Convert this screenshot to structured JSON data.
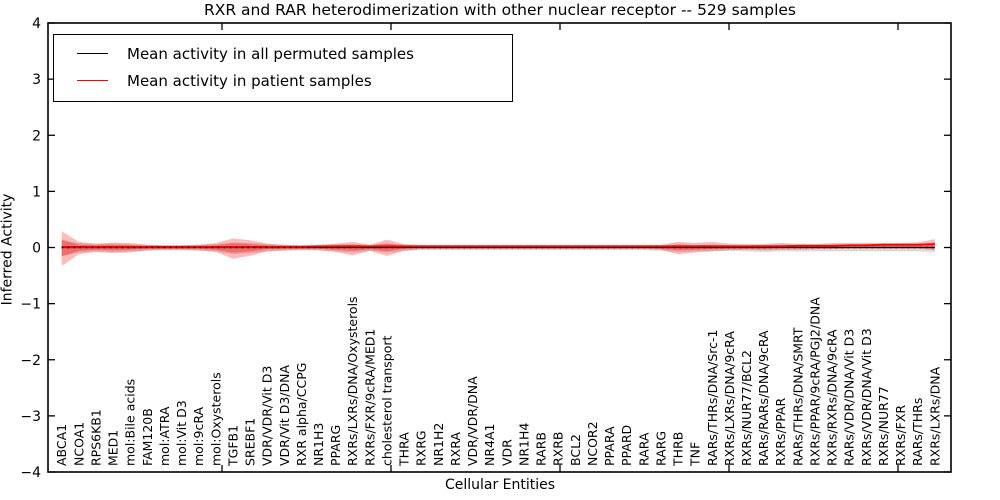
{
  "title": "RXR and RAR heterodimerization with other nuclear receptor -- 529 samples",
  "legend": {
    "items": [
      {
        "label": "Mean activity in all permuted samples",
        "color": "#000000"
      },
      {
        "label": "Mean activity in patient samples",
        "color": "#ff0000"
      }
    ]
  },
  "axes": {
    "ylabel": "Inferred Activity",
    "xlabel": "Cellular Entities",
    "ylim": [
      -4,
      4
    ],
    "yticks": [
      4,
      3,
      2,
      1,
      0,
      -1,
      -2,
      -3,
      -4
    ],
    "ytick_labels": [
      "4",
      "3",
      "2",
      "1",
      "0",
      "−1",
      "−2",
      "−3",
      "−4"
    ]
  },
  "chart_data": {
    "type": "line",
    "title": "RXR and RAR heterodimerization with other nuclear receptor -- 529 samples",
    "xlabel": "Cellular Entities",
    "ylabel": "Inferred Activity",
    "ylim": [
      -4,
      4
    ],
    "grid": false,
    "legend_position": "upper left",
    "categories": [
      "ABCA1",
      "NCOA1",
      "RPS6KB1",
      "MED1",
      "mol:Bile acids",
      "FAM120B",
      "mol:ATRA",
      "mol:Vit D3",
      "mol:9cRA",
      "mol:Oxysterols",
      "TGFB1",
      "SREBF1",
      "VDR/VDR/Vit D3",
      "VDR/Vit D3/DNA",
      "RXR alpha/CCPG",
      "NR1H3",
      "PPARG",
      "RXRs/LXRs/DNA/Oxysterols",
      "RXRs/FXR/9cRA/MED1",
      "cholesterol transport",
      "THRA",
      "RXRG",
      "NR1H2",
      "RXRA",
      "VDR/VDR/DNA",
      "NR4A1",
      "VDR",
      "NR1H4",
      "RARB",
      "RXRB",
      "BCL2",
      "NCOR2",
      "PPARA",
      "PPARD",
      "RARA",
      "RARG",
      "THRB",
      "TNF",
      "RARs/THRs/DNA/Src-1",
      "RXRs/LXRs/DNA/9cRA",
      "RXRs/NUR77/BCL2",
      "RARs/RARs/DNA/9cRA",
      "RXRs/PPAR",
      "RARs/THRs/DNA/SMRT",
      "RXRs/PPAR/9cRA/PGJ2/DNA",
      "RXRs/RXRs/DNA/9cRA",
      "RARs/VDR/DNA/Vit D3",
      "RXRs/VDR/DNA/Vit D3",
      "RXRs/NUR77",
      "RXRs/FXR",
      "RARs/THRs",
      "RXRs/LXRs/DNA"
    ],
    "series": [
      {
        "name": "Mean activity in all permuted samples",
        "color": "#000000",
        "width": 1.3,
        "values": [
          0,
          0,
          0,
          0,
          0,
          0,
          0,
          0,
          0,
          0,
          0,
          0,
          0,
          0,
          0,
          0,
          0,
          0,
          0,
          0,
          0,
          0,
          0,
          0,
          0,
          0,
          0,
          0,
          0,
          0,
          0,
          0,
          0,
          0,
          0,
          0,
          0,
          0,
          0,
          0,
          0,
          0,
          0,
          0,
          0,
          0,
          0,
          0,
          0,
          0,
          0,
          0
        ]
      },
      {
        "name": "Mean activity in patient samples",
        "color": "#ff0000",
        "width": 1.8,
        "values": [
          0.01,
          0.01,
          0.01,
          0.01,
          0.01,
          0.01,
          0.01,
          0.01,
          0.01,
          0.01,
          0.01,
          0.01,
          0.01,
          0.01,
          0.01,
          0.02,
          0.02,
          0.02,
          0.02,
          0.02,
          0.02,
          0.02,
          0.02,
          0.02,
          0.02,
          0.02,
          0.02,
          0.02,
          0.02,
          0.02,
          0.02,
          0.02,
          0.02,
          0.02,
          0.02,
          0.02,
          0.02,
          0.02,
          0.02,
          0.02,
          0.02,
          0.02,
          0.02,
          0.03,
          0.03,
          0.03,
          0.04,
          0.04,
          0.05,
          0.05,
          0.05,
          0.06
        ]
      }
    ],
    "bands": [
      {
        "name": "permuted-std",
        "color": "#000000",
        "alpha": 0.14,
        "upper": [
          0.12,
          0.08,
          0.06,
          0.07,
          0.06,
          0.05,
          0.04,
          0.04,
          0.05,
          0.06,
          0.09,
          0.08,
          0.06,
          0.05,
          0.04,
          0.04,
          0.06,
          0.06,
          0.05,
          0.07,
          0.05,
          0.04,
          0.04,
          0.04,
          0.04,
          0.04,
          0.04,
          0.04,
          0.04,
          0.04,
          0.04,
          0.04,
          0.04,
          0.04,
          0.04,
          0.04,
          0.06,
          0.05,
          0.05,
          0.04,
          0.04,
          0.05,
          0.04,
          0.04,
          0.04,
          0.04,
          0.04,
          0.04,
          0.04,
          0.04,
          0.04,
          0.06
        ],
        "lower": [
          -0.15,
          -0.09,
          -0.07,
          -0.08,
          -0.07,
          -0.06,
          -0.05,
          -0.05,
          -0.06,
          -0.07,
          -0.12,
          -0.1,
          -0.07,
          -0.06,
          -0.05,
          -0.05,
          -0.07,
          -0.09,
          -0.06,
          -0.09,
          -0.06,
          -0.05,
          -0.05,
          -0.05,
          -0.05,
          -0.05,
          -0.05,
          -0.05,
          -0.05,
          -0.05,
          -0.05,
          -0.05,
          -0.05,
          -0.05,
          -0.05,
          -0.06,
          -0.08,
          -0.07,
          -0.06,
          -0.06,
          -0.07,
          -0.08,
          -0.07,
          -0.07,
          -0.07,
          -0.07,
          -0.07,
          -0.07,
          -0.07,
          -0.07,
          -0.07,
          -0.08
        ]
      },
      {
        "name": "patient-outer",
        "color": "#ff0000",
        "alpha": 0.27,
        "upper": [
          0.29,
          0.1,
          0.07,
          0.09,
          0.08,
          0.05,
          0.04,
          0.04,
          0.05,
          0.08,
          0.16,
          0.13,
          0.07,
          0.05,
          0.04,
          0.05,
          0.07,
          0.1,
          0.05,
          0.14,
          0.06,
          0.05,
          0.05,
          0.05,
          0.05,
          0.05,
          0.05,
          0.05,
          0.05,
          0.05,
          0.05,
          0.05,
          0.05,
          0.05,
          0.05,
          0.05,
          0.1,
          0.08,
          0.1,
          0.07,
          0.06,
          0.06,
          0.08,
          0.07,
          0.06,
          0.08,
          0.08,
          0.08,
          0.08,
          0.08,
          0.09,
          0.15
        ],
        "lower": [
          -0.33,
          -0.12,
          -0.08,
          -0.1,
          -0.09,
          -0.05,
          -0.04,
          -0.04,
          -0.05,
          -0.08,
          -0.2,
          -0.15,
          -0.07,
          -0.05,
          -0.04,
          -0.05,
          -0.08,
          -0.14,
          -0.06,
          -0.15,
          -0.06,
          -0.03,
          -0.03,
          -0.03,
          -0.03,
          -0.03,
          -0.03,
          -0.03,
          -0.03,
          -0.03,
          -0.03,
          -0.03,
          -0.03,
          -0.03,
          -0.03,
          -0.04,
          -0.12,
          -0.09,
          -0.07,
          -0.05,
          -0.04,
          -0.05,
          -0.04,
          -0.04,
          -0.03,
          -0.03,
          -0.02,
          -0.02,
          -0.02,
          -0.02,
          -0.02,
          -0.05
        ]
      },
      {
        "name": "patient-inner",
        "color": "#ff0000",
        "alpha": 0.3,
        "upper": [
          0.14,
          0.05,
          0.04,
          0.05,
          0.04,
          0.03,
          0.03,
          0.03,
          0.03,
          0.04,
          0.08,
          0.06,
          0.04,
          0.03,
          0.03,
          0.03,
          0.04,
          0.05,
          0.03,
          0.07,
          0.04,
          0.03,
          0.03,
          0.03,
          0.03,
          0.03,
          0.03,
          0.03,
          0.03,
          0.03,
          0.03,
          0.03,
          0.03,
          0.03,
          0.03,
          0.03,
          0.05,
          0.04,
          0.05,
          0.04,
          0.04,
          0.04,
          0.05,
          0.04,
          0.04,
          0.05,
          0.05,
          0.05,
          0.05,
          0.05,
          0.06,
          0.09
        ],
        "lower": [
          -0.16,
          -0.06,
          -0.04,
          -0.05,
          -0.04,
          -0.02,
          -0.02,
          -0.02,
          -0.02,
          -0.04,
          -0.09,
          -0.07,
          -0.03,
          -0.02,
          -0.02,
          -0.02,
          -0.04,
          -0.06,
          -0.03,
          -0.07,
          -0.02,
          -0.01,
          -0.01,
          -0.01,
          -0.01,
          -0.01,
          -0.01,
          -0.01,
          -0.01,
          -0.01,
          -0.01,
          -0.01,
          -0.01,
          -0.01,
          -0.01,
          -0.02,
          -0.05,
          -0.04,
          -0.03,
          -0.02,
          -0.02,
          -0.02,
          -0.01,
          -0.01,
          -0.01,
          -0.01,
          0.0,
          0.0,
          0.0,
          0.0,
          0.0,
          -0.02
        ]
      }
    ],
    "zero_line": {
      "value": 0,
      "style": "dotted",
      "color": "#000000"
    }
  }
}
